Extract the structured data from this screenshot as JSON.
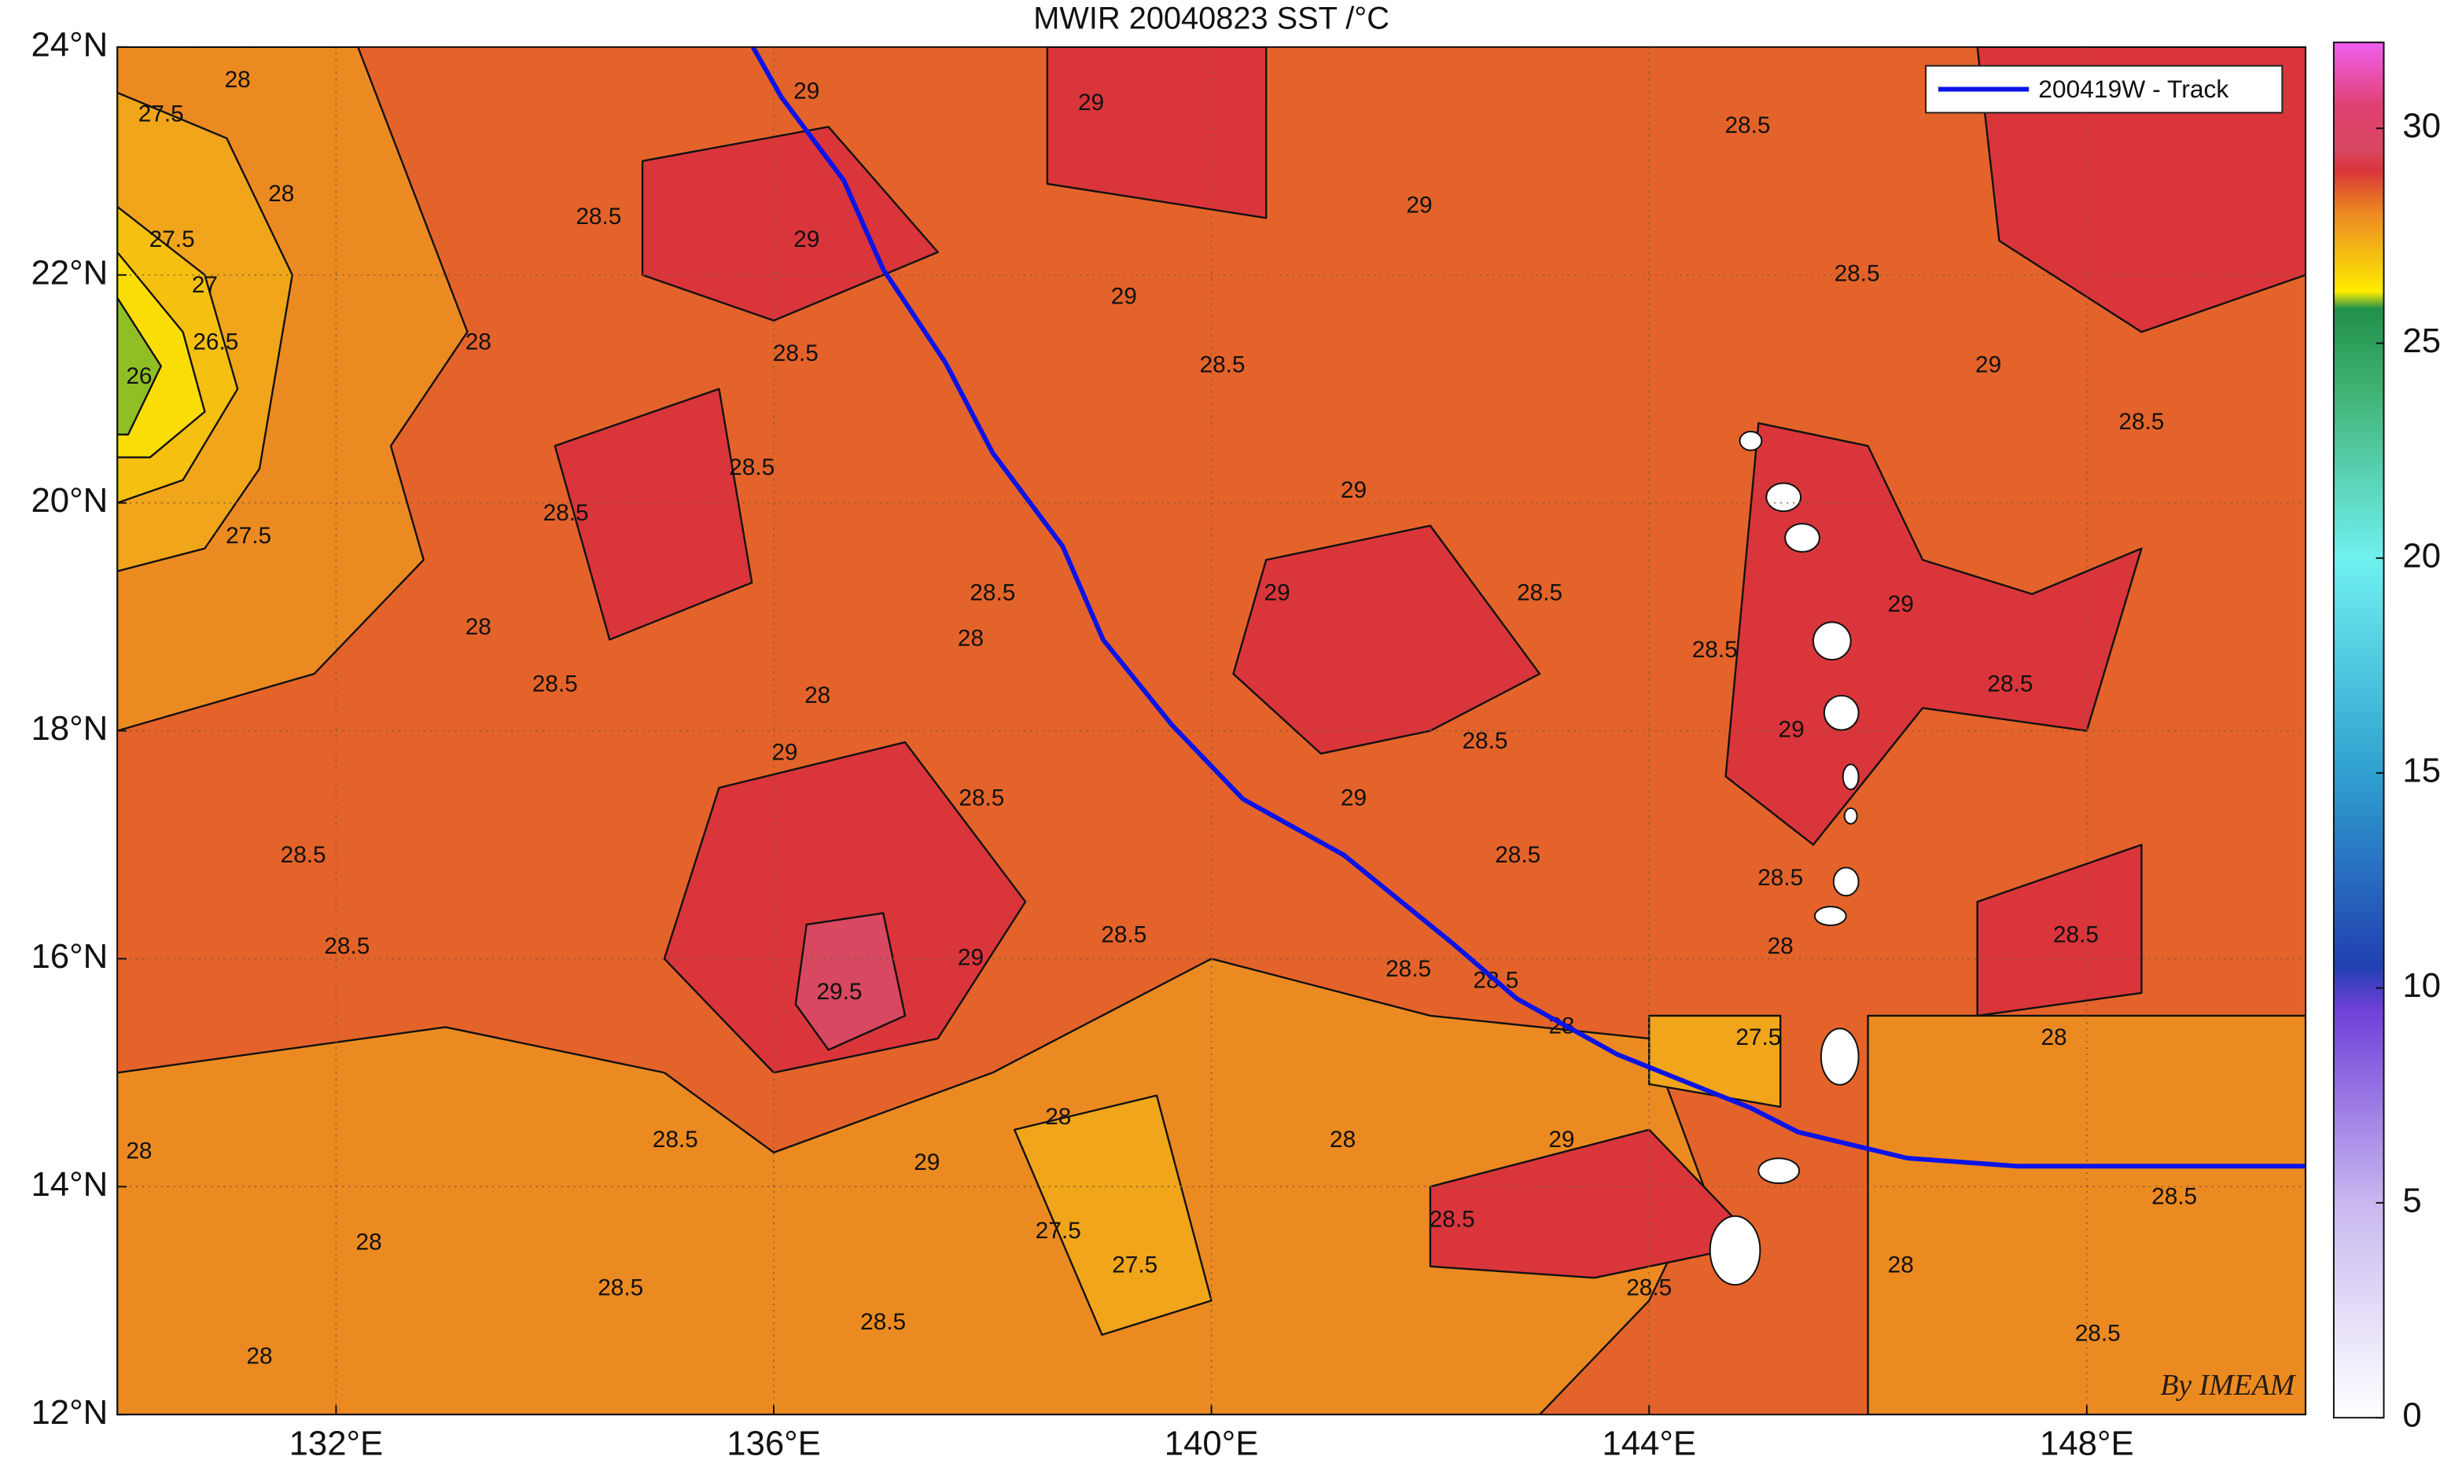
{
  "chart_data": {
    "type": "contour-map",
    "title": "MWIR 20040823 SST /°C",
    "credit": "By IMEAM",
    "xlim": [
      130,
      150
    ],
    "ylim": [
      12,
      24
    ],
    "xticks": [
      {
        "value": 132,
        "label": "132°E"
      },
      {
        "value": 136,
        "label": "136°E"
      },
      {
        "value": 140,
        "label": "140°E"
      },
      {
        "value": 144,
        "label": "144°E"
      },
      {
        "value": 148,
        "label": "148°E"
      }
    ],
    "yticks": [
      {
        "value": 12,
        "label": "12°N"
      },
      {
        "value": 14,
        "label": "14°N"
      },
      {
        "value": 16,
        "label": "16°N"
      },
      {
        "value": 18,
        "label": "18°N"
      },
      {
        "value": 20,
        "label": "20°N"
      },
      {
        "value": 22,
        "label": "22°N"
      },
      {
        "value": 24,
        "label": "24°N"
      }
    ],
    "grid": true,
    "legend": "upper right",
    "colorbar": {
      "clim": [
        0,
        32
      ],
      "ticks": [
        0,
        5,
        10,
        15,
        20,
        25,
        30
      ],
      "stops": [
        {
          "value": 0,
          "color": "#ffffff"
        },
        {
          "value": 5,
          "color": "#c8b8f0"
        },
        {
          "value": 9.5,
          "color": "#7040d8"
        },
        {
          "value": 10.5,
          "color": "#2040b0"
        },
        {
          "value": 15,
          "color": "#30a0d0"
        },
        {
          "value": 20,
          "color": "#70f0f0"
        },
        {
          "value": 24,
          "color": "#40b070"
        },
        {
          "value": 25.8,
          "color": "#20904a"
        },
        {
          "value": 26.2,
          "color": "#ffee00"
        },
        {
          "value": 27,
          "color": "#f5c010"
        },
        {
          "value": 27.5,
          "color": "#f0a51a"
        },
        {
          "value": 28,
          "color": "#ec8a22"
        },
        {
          "value": 28.5,
          "color": "#e4632a"
        },
        {
          "value": 29,
          "color": "#d9353a"
        },
        {
          "value": 29.5,
          "color": "#d84860"
        },
        {
          "value": 30.5,
          "color": "#e04070"
        },
        {
          "value": 32,
          "color": "#f060f0"
        }
      ]
    },
    "base_value": 28.5,
    "regions": [
      {
        "value": 28,
        "lon": [
          130,
          132.2,
          132.8,
          133.2,
          132.5,
          132.8,
          131.8,
          130
        ],
        "lat": [
          24,
          24,
          22.5,
          21.5,
          20.5,
          19.5,
          18.5,
          18
        ]
      },
      {
        "value": 28,
        "lon": [
          130,
          133,
          135,
          136,
          138,
          140,
          142,
          144,
          144.5,
          144,
          143,
          130
        ],
        "lat": [
          15,
          15.4,
          15,
          14.3,
          15,
          16,
          15.5,
          15.3,
          14,
          13,
          12,
          12
        ]
      },
      {
        "value": 28,
        "lon": [
          146,
          150,
          150,
          146
        ],
        "lat": [
          15.5,
          15.5,
          12,
          12
        ]
      },
      {
        "value": 27.5,
        "lon": [
          130,
          131,
          131.6,
          131.3,
          130.8,
          130
        ],
        "lat": [
          23.6,
          23.2,
          22,
          20.3,
          19.6,
          19.4
        ]
      },
      {
        "value": 27.5,
        "lon": [
          138.2,
          139.5,
          140,
          139
        ],
        "lat": [
          14.5,
          14.8,
          13,
          12.7
        ]
      },
      {
        "value": 27.5,
        "lon": [
          144,
          145.2,
          145.2,
          144
        ],
        "lat": [
          15.5,
          15.5,
          14.7,
          14.9
        ]
      },
      {
        "value": 27,
        "lon": [
          130,
          130.8,
          131.1,
          130.6,
          130
        ],
        "lat": [
          22.6,
          22,
          21,
          20.2,
          20
        ]
      },
      {
        "value": 26.5,
        "lon": [
          130,
          130.6,
          130.8,
          130.3,
          130
        ],
        "lat": [
          22.2,
          21.5,
          20.8,
          20.4,
          20.4
        ]
      },
      {
        "value": 26,
        "lon": [
          130,
          130.4,
          130.1,
          130
        ],
        "lat": [
          21.8,
          21.2,
          20.6,
          20.6
        ]
      },
      {
        "value": 29,
        "lon": [
          134.8,
          136.5,
          137.5,
          136,
          134.8
        ],
        "lat": [
          23,
          23.3,
          22.2,
          21.6,
          22
        ]
      },
      {
        "value": 29,
        "lon": [
          135.5,
          137.2,
          138.3,
          137.5,
          136,
          135
        ],
        "lat": [
          17.5,
          17.9,
          16.5,
          15.3,
          15,
          16
        ]
      },
      {
        "value": 29,
        "lon": [
          140.5,
          142,
          143,
          142,
          141,
          140.2
        ],
        "lat": [
          19.5,
          19.8,
          18.5,
          18,
          17.8,
          18.5
        ]
      },
      {
        "value": 29,
        "lon": [
          138.5,
          140.5,
          140.5,
          138.5
        ],
        "lat": [
          24,
          24,
          22.5,
          22.8
        ]
      },
      {
        "value": 29,
        "lon": [
          145,
          146,
          146.5,
          147.5,
          148.5,
          148,
          146.5,
          145.5,
          144.7
        ],
        "lat": [
          20.7,
          20.5,
          19.5,
          19.2,
          19.6,
          18,
          18.2,
          17,
          17.6
        ]
      },
      {
        "value": 29,
        "lon": [
          147,
          150,
          150,
          148.5,
          147.2
        ],
        "lat": [
          24,
          24,
          22,
          21.5,
          22.3
        ]
      },
      {
        "value": 29,
        "lon": [
          142,
          144,
          145,
          143.5,
          142
        ],
        "lat": [
          14,
          14.5,
          13.5,
          13.2,
          13.3
        ]
      },
      {
        "value": 29,
        "lon": [
          147,
          148.5,
          148.5,
          147
        ],
        "lat": [
          16.5,
          17,
          15.7,
          15.5
        ]
      },
      {
        "value": 29,
        "lon": [
          134,
          135.5,
          135.8,
          134.5
        ],
        "lat": [
          20.5,
          21,
          19.3,
          18.8
        ]
      },
      {
        "value": 29.5,
        "lon": [
          136.3,
          137,
          137.2,
          136.5,
          136.2
        ],
        "lat": [
          16.3,
          16.4,
          15.5,
          15.2,
          15.6
        ]
      }
    ],
    "contour_labels": [
      {
        "value": 28,
        "lon": 131.1,
        "lat": 23.7
      },
      {
        "value": 27.5,
        "lon": 130.4,
        "lat": 23.4
      },
      {
        "value": 28,
        "lon": 131.5,
        "lat": 22.7
      },
      {
        "value": 27.5,
        "lon": 130.5,
        "lat": 22.3
      },
      {
        "value": 27,
        "lon": 130.8,
        "lat": 21.9
      },
      {
        "value": 26.5,
        "lon": 130.9,
        "lat": 21.4
      },
      {
        "value": 26,
        "lon": 130.2,
        "lat": 21.1
      },
      {
        "value": 27.5,
        "lon": 131.2,
        "lat": 19.7
      },
      {
        "value": 28,
        "lon": 133.3,
        "lat": 21.4
      },
      {
        "value": 28.5,
        "lon": 134.4,
        "lat": 22.5
      },
      {
        "value": 29,
        "lon": 136.3,
        "lat": 23.6
      },
      {
        "value": 29,
        "lon": 136.3,
        "lat": 22.3
      },
      {
        "value": 29,
        "lon": 138.9,
        "lat": 23.5
      },
      {
        "value": 29,
        "lon": 139.2,
        "lat": 21.8
      },
      {
        "value": 29,
        "lon": 141.9,
        "lat": 22.6
      },
      {
        "value": 28.5,
        "lon": 144.9,
        "lat": 23.3
      },
      {
        "value": 28.5,
        "lon": 145.9,
        "lat": 22
      },
      {
        "value": 29,
        "lon": 147.1,
        "lat": 21.2
      },
      {
        "value": 28.5,
        "lon": 148.5,
        "lat": 20.7
      },
      {
        "value": 28.5,
        "lon": 135.8,
        "lat": 20.3
      },
      {
        "value": 28.5,
        "lon": 134.1,
        "lat": 19.9
      },
      {
        "value": 28,
        "lon": 133.3,
        "lat": 18.9
      },
      {
        "value": 28.5,
        "lon": 134.0,
        "lat": 18.4
      },
      {
        "value": 28,
        "lon": 136.4,
        "lat": 18.3
      },
      {
        "value": 28.5,
        "lon": 138.0,
        "lat": 19.2
      },
      {
        "value": 28,
        "lon": 137.8,
        "lat": 18.8
      },
      {
        "value": 29,
        "lon": 140.6,
        "lat": 19.2
      },
      {
        "value": 28.5,
        "lon": 140.1,
        "lat": 21.2
      },
      {
        "value": 29,
        "lon": 141.3,
        "lat": 20.1
      },
      {
        "value": 28.5,
        "lon": 143.0,
        "lat": 19.2
      },
      {
        "value": 28.5,
        "lon": 144.6,
        "lat": 18.7
      },
      {
        "value": 29,
        "lon": 146.3,
        "lat": 19.1
      },
      {
        "value": 28.5,
        "lon": 147.3,
        "lat": 18.4
      },
      {
        "value": 28.5,
        "lon": 136.2,
        "lat": 21.3
      },
      {
        "value": 29,
        "lon": 136.1,
        "lat": 17.8
      },
      {
        "value": 28.5,
        "lon": 137.9,
        "lat": 17.4
      },
      {
        "value": 29,
        "lon": 141.3,
        "lat": 17.4
      },
      {
        "value": 28.5,
        "lon": 142.8,
        "lat": 16.9
      },
      {
        "value": 28.5,
        "lon": 142.5,
        "lat": 17.9
      },
      {
        "value": 29.5,
        "lon": 136.6,
        "lat": 15.7
      },
      {
        "value": 29,
        "lon": 137.8,
        "lat": 16.0
      },
      {
        "value": 28.5,
        "lon": 139.2,
        "lat": 16.2
      },
      {
        "value": 28.5,
        "lon": 132.1,
        "lat": 16.1
      },
      {
        "value": 28.5,
        "lon": 131.7,
        "lat": 16.9
      },
      {
        "value": 28,
        "lon": 132.3,
        "lat": 13.5
      },
      {
        "value": 28,
        "lon": 130.2,
        "lat": 14.3
      },
      {
        "value": 28,
        "lon": 131.3,
        "lat": 12.5
      },
      {
        "value": 28.5,
        "lon": 134.6,
        "lat": 13.1
      },
      {
        "value": 28.5,
        "lon": 135.1,
        "lat": 14.4
      },
      {
        "value": 29,
        "lon": 137.4,
        "lat": 14.2
      },
      {
        "value": 28.5,
        "lon": 137.0,
        "lat": 12.8
      },
      {
        "value": 27.5,
        "lon": 138.6,
        "lat": 13.6
      },
      {
        "value": 27.5,
        "lon": 139.3,
        "lat": 13.3
      },
      {
        "value": 28,
        "lon": 138.6,
        "lat": 14.6
      },
      {
        "value": 28,
        "lon": 141.2,
        "lat": 14.4
      },
      {
        "value": 28.5,
        "lon": 141.8,
        "lat": 15.9
      },
      {
        "value": 28.5,
        "lon": 142.6,
        "lat": 15.8
      },
      {
        "value": 28,
        "lon": 143.2,
        "lat": 15.4
      },
      {
        "value": 29,
        "lon": 143.2,
        "lat": 14.4
      },
      {
        "value": 28.5,
        "lon": 142.2,
        "lat": 13.7
      },
      {
        "value": 28.5,
        "lon": 144.0,
        "lat": 13.1
      },
      {
        "value": 27.5,
        "lon": 145.0,
        "lat": 15.3
      },
      {
        "value": 28,
        "lon": 145.2,
        "lat": 16.1
      },
      {
        "value": 28.5,
        "lon": 145.2,
        "lat": 16.7
      },
      {
        "value": 29,
        "lon": 145.3,
        "lat": 18.0
      },
      {
        "value": 28,
        "lon": 147.7,
        "lat": 15.3
      },
      {
        "value": 28.5,
        "lon": 147.9,
        "lat": 16.2
      },
      {
        "value": 28,
        "lon": 146.3,
        "lat": 13.3
      },
      {
        "value": 28.5,
        "lon": 148.8,
        "lat": 13.9
      },
      {
        "value": 28.5,
        "lon": 148.1,
        "lat": 12.7
      }
    ],
    "track": {
      "name": "200419W - Track",
      "color": "#0a14e6",
      "lon": [
        135.81,
        136.07,
        136.64,
        137.0,
        137.57,
        138.0,
        138.64,
        139.01,
        139.64,
        140.29,
        141.21,
        142.21,
        142.79,
        143.71,
        144.93,
        145.36,
        146.36,
        147.36,
        150
      ],
      "lat": [
        24,
        23.56,
        22.83,
        22.05,
        21.23,
        20.44,
        19.62,
        18.8,
        18.05,
        17.4,
        16.91,
        16.13,
        15.65,
        15.16,
        14.69,
        14.48,
        14.25,
        14.18,
        14.18
      ]
    }
  }
}
